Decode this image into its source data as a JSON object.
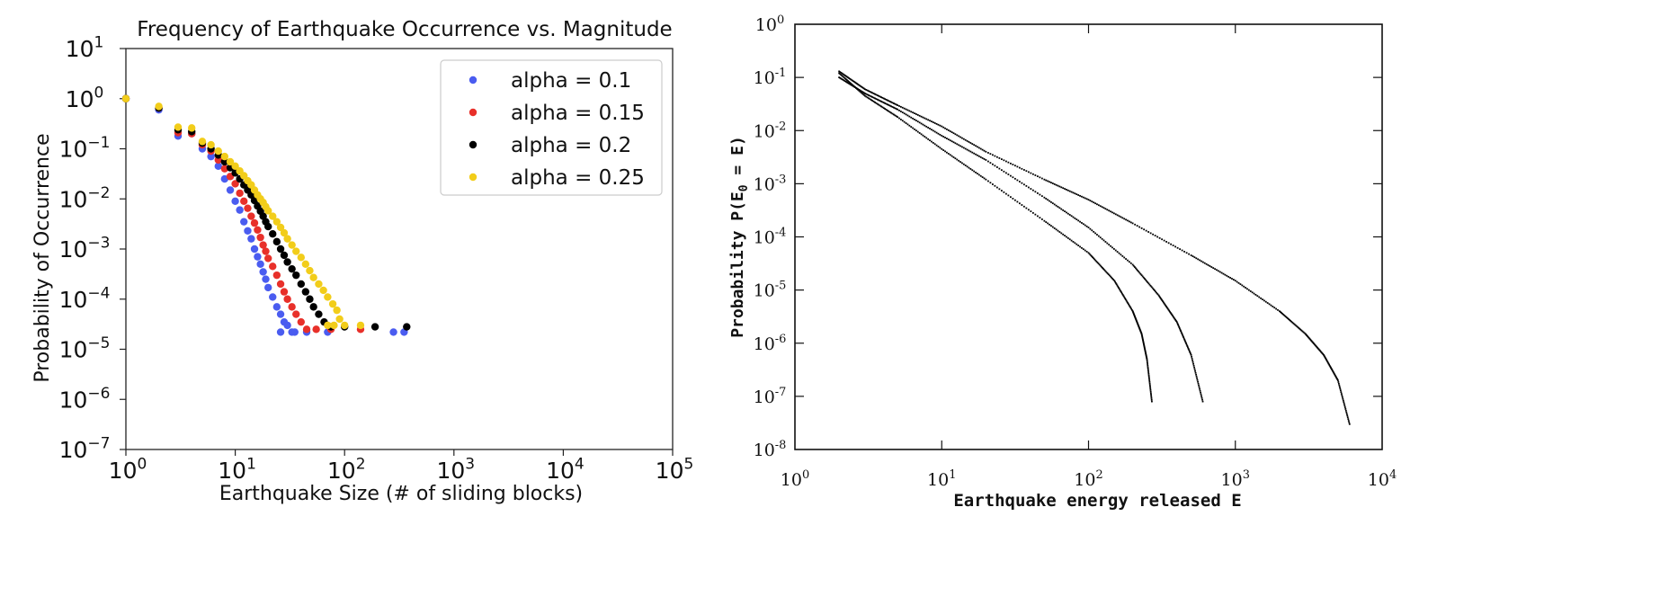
{
  "chart_data": [
    {
      "type": "scatter",
      "title": "Frequency of Earthquake Occurrence vs. Magnitude",
      "xlabel": "Earthquake Size (# of sliding blocks)",
      "ylabel": "Probability of Occurrence",
      "xscale": "log",
      "yscale": "log",
      "xlim": [
        1,
        100000
      ],
      "ylim": [
        1e-07,
        10
      ],
      "x_ticks": [
        {
          "base": "10",
          "exp": "0"
        },
        {
          "base": "10",
          "exp": "1"
        },
        {
          "base": "10",
          "exp": "2"
        },
        {
          "base": "10",
          "exp": "3"
        },
        {
          "base": "10",
          "exp": "4"
        },
        {
          "base": "10",
          "exp": "5"
        }
      ],
      "y_ticks": [
        {
          "base": "10",
          "exp": "1"
        },
        {
          "base": "10",
          "exp": "0"
        },
        {
          "base": "10",
          "exp": "−1"
        },
        {
          "base": "10",
          "exp": "−2"
        },
        {
          "base": "10",
          "exp": "−3"
        },
        {
          "base": "10",
          "exp": "−4"
        },
        {
          "base": "10",
          "exp": "−5"
        },
        {
          "base": "10",
          "exp": "−6"
        },
        {
          "base": "10",
          "exp": "−7"
        }
      ],
      "legend_position": "top-right",
      "grid": false,
      "series": [
        {
          "name": "alpha = 0.1",
          "color": "#4a5cf0",
          "points": [
            [
              1,
              1.0
            ],
            [
              2,
              0.6
            ],
            [
              3,
              0.18
            ],
            [
              4,
              0.2
            ],
            [
              5,
              0.1
            ],
            [
              6,
              0.07
            ],
            [
              7,
              0.045
            ],
            [
              8,
              0.025
            ],
            [
              9,
              0.015
            ],
            [
              10,
              0.009
            ],
            [
              11,
              0.006
            ],
            [
              12,
              0.0035
            ],
            [
              13,
              0.0023
            ],
            [
              14,
              0.0016
            ],
            [
              15,
              0.001
            ],
            [
              16,
              0.0007
            ],
            [
              17,
              0.0005
            ],
            [
              18,
              0.00035
            ],
            [
              19,
              0.00025
            ],
            [
              20,
              0.00017
            ],
            [
              22,
              0.00011
            ],
            [
              24,
              7e-05
            ],
            [
              26,
              5e-05
            ],
            [
              28,
              3.5e-05
            ],
            [
              30,
              3e-05
            ],
            [
              33,
              2.2e-05
            ],
            [
              26,
              2.2e-05
            ],
            [
              35,
              2.2e-05
            ],
            [
              45,
              2.2e-05
            ],
            [
              70,
              2.2e-05
            ],
            [
              280,
              2.2e-05
            ],
            [
              350,
              2.2e-05
            ]
          ]
        },
        {
          "name": "alpha = 0.15",
          "color": "#e8302a",
          "points": [
            [
              1,
              1.0
            ],
            [
              2,
              0.65
            ],
            [
              3,
              0.21
            ],
            [
              4,
              0.2
            ],
            [
              5,
              0.12
            ],
            [
              6,
              0.09
            ],
            [
              7,
              0.06
            ],
            [
              8,
              0.04
            ],
            [
              9,
              0.028
            ],
            [
              10,
              0.02
            ],
            [
              11,
              0.013
            ],
            [
              12,
              0.009
            ],
            [
              13,
              0.0065
            ],
            [
              14,
              0.0045
            ],
            [
              15,
              0.0033
            ],
            [
              16,
              0.0024
            ],
            [
              17,
              0.0017
            ],
            [
              18,
              0.0012
            ],
            [
              19,
              0.0009
            ],
            [
              20,
              0.00065
            ],
            [
              22,
              0.00045
            ],
            [
              24,
              0.0003
            ],
            [
              26,
              0.0002
            ],
            [
              28,
              0.00014
            ],
            [
              30,
              0.0001
            ],
            [
              33,
              7e-05
            ],
            [
              36,
              5e-05
            ],
            [
              40,
              3.5e-05
            ],
            [
              45,
              2.5e-05
            ],
            [
              55,
              2.5e-05
            ],
            [
              75,
              2.5e-05
            ],
            [
              140,
              2.5e-05
            ]
          ]
        },
        {
          "name": "alpha = 0.2",
          "color": "#000000",
          "points": [
            [
              1,
              1.0
            ],
            [
              2,
              0.65
            ],
            [
              3,
              0.24
            ],
            [
              4,
              0.22
            ],
            [
              5,
              0.13
            ],
            [
              6,
              0.1
            ],
            [
              7,
              0.075
            ],
            [
              8,
              0.055
            ],
            [
              9,
              0.042
            ],
            [
              10,
              0.033
            ],
            [
              11,
              0.025
            ],
            [
              12,
              0.019
            ],
            [
              13,
              0.015
            ],
            [
              14,
              0.012
            ],
            [
              15,
              0.0093
            ],
            [
              16,
              0.0072
            ],
            [
              17,
              0.0057
            ],
            [
              18,
              0.0045
            ],
            [
              19,
              0.0035
            ],
            [
              20,
              0.0028
            ],
            [
              22,
              0.002
            ],
            [
              24,
              0.0014
            ],
            [
              26,
              0.001
            ],
            [
              28,
              0.00075
            ],
            [
              30,
              0.00055
            ],
            [
              33,
              0.0004
            ],
            [
              36,
              0.0003
            ],
            [
              40,
              0.0002
            ],
            [
              44,
              0.00014
            ],
            [
              48,
              0.0001
            ],
            [
              52,
              7e-05
            ],
            [
              58,
              5e-05
            ],
            [
              65,
              3.5e-05
            ],
            [
              75,
              2.8e-05
            ],
            [
              100,
              2.8e-05
            ],
            [
              190,
              2.8e-05
            ],
            [
              370,
              2.8e-05
            ]
          ]
        },
        {
          "name": "alpha = 0.25",
          "color": "#f2cd1a",
          "points": [
            [
              1,
              1.0
            ],
            [
              2,
              0.7
            ],
            [
              3,
              0.27
            ],
            [
              4,
              0.26
            ],
            [
              5,
              0.14
            ],
            [
              6,
              0.12
            ],
            [
              7,
              0.09
            ],
            [
              8,
              0.07
            ],
            [
              9,
              0.055
            ],
            [
              10,
              0.045
            ],
            [
              11,
              0.036
            ],
            [
              12,
              0.029
            ],
            [
              13,
              0.023
            ],
            [
              14,
              0.019
            ],
            [
              15,
              0.015
            ],
            [
              16,
              0.012
            ],
            [
              17,
              0.01
            ],
            [
              18,
              0.0085
            ],
            [
              19,
              0.007
            ],
            [
              20,
              0.0058
            ],
            [
              22,
              0.0045
            ],
            [
              24,
              0.0035
            ],
            [
              26,
              0.0027
            ],
            [
              28,
              0.0021
            ],
            [
              30,
              0.0016
            ],
            [
              33,
              0.0012
            ],
            [
              36,
              0.0009
            ],
            [
              40,
              0.00068
            ],
            [
              44,
              0.0005
            ],
            [
              48,
              0.00037
            ],
            [
              52,
              0.00027
            ],
            [
              58,
              0.0002
            ],
            [
              64,
              0.00015
            ],
            [
              70,
              0.00011
            ],
            [
              78,
              8e-05
            ],
            [
              85,
              6e-05
            ],
            [
              90,
              4e-05
            ],
            [
              70,
              3e-05
            ],
            [
              80,
              3e-05
            ],
            [
              100,
              3e-05
            ],
            [
              140,
              3e-05
            ]
          ]
        }
      ]
    },
    {
      "type": "scatter",
      "xlabel": "Earthquake energy released E",
      "ylabel_text": "Probability P(E",
      "ylabel_sub": "0",
      "ylabel_tail": " = E)",
      "xscale": "log",
      "yscale": "log",
      "xlim": [
        1,
        10000
      ],
      "ylim": [
        1e-08,
        1
      ],
      "x_ticks": [
        {
          "base": "10",
          "exp": "0"
        },
        {
          "base": "10",
          "exp": "1"
        },
        {
          "base": "10",
          "exp": "2"
        },
        {
          "base": "10",
          "exp": "3"
        },
        {
          "base": "10",
          "exp": "4"
        }
      ],
      "y_ticks": [
        {
          "base": "10",
          "exp": "0"
        },
        {
          "base": "10",
          "exp": "-1"
        },
        {
          "base": "10",
          "exp": "-2"
        },
        {
          "base": "10",
          "exp": "-3"
        },
        {
          "base": "10",
          "exp": "-4"
        },
        {
          "base": "10",
          "exp": "-5"
        },
        {
          "base": "10",
          "exp": "-6"
        },
        {
          "base": "10",
          "exp": "-7"
        },
        {
          "base": "10",
          "exp": "-8"
        }
      ],
      "grid": false,
      "series": [
        {
          "color": "#000000",
          "points": [
            [
              2,
              0.12
            ],
            [
              3,
              0.045
            ],
            [
              5,
              0.018
            ],
            [
              10,
              0.0045
            ],
            [
              20,
              0.0012
            ],
            [
              50,
              0.0002
            ],
            [
              100,
              5e-05
            ],
            [
              150,
              1.5e-05
            ],
            [
              200,
              4e-06
            ],
            [
              230,
              1.5e-06
            ],
            [
              250,
              5e-07
            ],
            [
              270,
              8e-08
            ]
          ]
        },
        {
          "color": "#000000",
          "points": [
            [
              2,
              0.1
            ],
            [
              3,
              0.05
            ],
            [
              5,
              0.025
            ],
            [
              10,
              0.008
            ],
            [
              20,
              0.0028
            ],
            [
              50,
              0.00055
            ],
            [
              100,
              0.00015
            ],
            [
              200,
              3e-05
            ],
            [
              300,
              8e-06
            ],
            [
              400,
              2.5e-06
            ],
            [
              500,
              6e-07
            ],
            [
              600,
              8e-08
            ]
          ]
        },
        {
          "color": "#000000",
          "points": [
            [
              2,
              0.13
            ],
            [
              3,
              0.06
            ],
            [
              5,
              0.03
            ],
            [
              10,
              0.012
            ],
            [
              20,
              0.004
            ],
            [
              50,
              0.0012
            ],
            [
              100,
              0.0005
            ],
            [
              200,
              0.00018
            ],
            [
              500,
              4.5e-05
            ],
            [
              1000,
              1.5e-05
            ],
            [
              2000,
              4e-06
            ],
            [
              3000,
              1.5e-06
            ],
            [
              4000,
              6e-07
            ],
            [
              5000,
              2e-07
            ],
            [
              6000,
              3e-08
            ]
          ]
        }
      ]
    }
  ]
}
